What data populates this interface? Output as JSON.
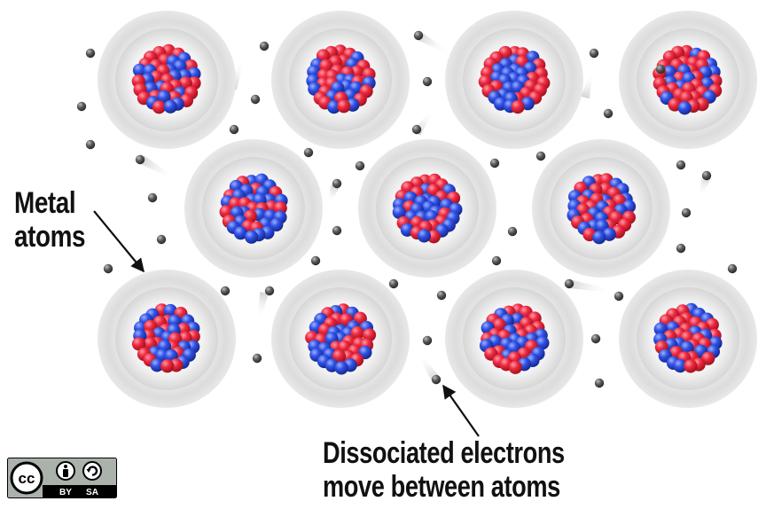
{
  "labels": {
    "metal_line1": "Metal",
    "metal_line2": "atoms",
    "electrons_line1": "Dissociated electrons",
    "electrons_line2": "move between atoms"
  },
  "license": {
    "cc": "cc",
    "by": "BY",
    "sa": "SA",
    "icons": [
      "cc-icon",
      "attribution-icon",
      "share-alike-icon"
    ]
  },
  "colors": {
    "proton": "#e8243c",
    "neutron": "#2f4fe0",
    "electron": "#555555",
    "shell": "#e2e2e2"
  }
}
